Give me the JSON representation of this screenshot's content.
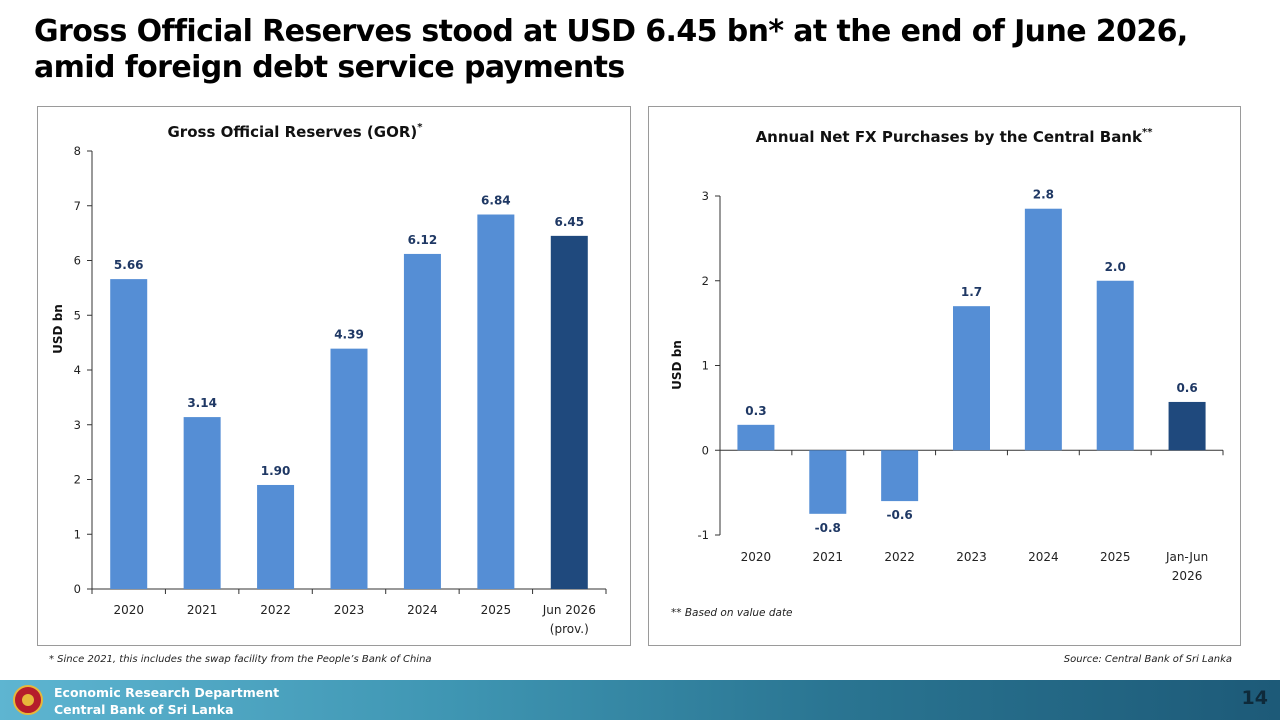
{
  "headline": {
    "line1": "Gross Official Reserves stood at USD 6.45 bn* at the end of June 2026,",
    "line2": "amid foreign debt service payments"
  },
  "colors": {
    "bar": "#558ed5",
    "highlight": "#1f497d",
    "label": "#1f3864"
  },
  "chart_data": [
    {
      "type": "bar",
      "title": "Gross Official Reserves (GOR)",
      "title_mark": "*",
      "ylabel": "USD bn",
      "ylim": [
        0,
        8
      ],
      "yticks": [
        "0",
        "1",
        "2",
        "3",
        "4",
        "5",
        "6",
        "7",
        "8"
      ],
      "categories": [
        "2020",
        "2021",
        "2022",
        "2023",
        "2024",
        "2025",
        "Jun 2026"
      ],
      "category_sublabels": [
        "",
        "",
        "",
        "",
        "",
        "",
        "(prov.)"
      ],
      "values": [
        5.66,
        3.14,
        1.9,
        4.39,
        6.12,
        6.84,
        6.45
      ],
      "value_labels": [
        "5.66",
        "3.14",
        "1.90",
        "4.39",
        "6.12",
        "6.84",
        "6.45"
      ],
      "highlight_index": 6,
      "grid": false
    },
    {
      "type": "bar",
      "title": "Annual Net FX Purchases by the Central Bank",
      "title_mark": "**",
      "ylabel": "USD bn",
      "ylim": [
        -1,
        3
      ],
      "yticks": [
        "-1",
        "0",
        "1",
        "2",
        "3"
      ],
      "categories": [
        "2020",
        "2021",
        "2022",
        "2023",
        "2024",
        "2025",
        "Jan-Jun"
      ],
      "category_sublabels": [
        "",
        "",
        "",
        "",
        "",
        "",
        "2026"
      ],
      "values": [
        0.3,
        -0.75,
        -0.6,
        1.7,
        2.85,
        2.0,
        0.57
      ],
      "value_labels": [
        "0.3",
        "-0.8",
        "-0.6",
        "1.7",
        "2.8",
        "2.0",
        "0.6"
      ],
      "highlight_index": 6,
      "grid": false,
      "note": "** Based on value date"
    }
  ],
  "footnotes": {
    "left": "* Since 2021, this includes the swap facility from the People’s Bank of China",
    "right": "Source: Central Bank of Sri Lanka"
  },
  "footer": {
    "line1": "Economic Research Department",
    "line2": "Central Bank of Sri Lanka",
    "page_number": "14",
    "logo": "cbsl-seal-icon"
  }
}
